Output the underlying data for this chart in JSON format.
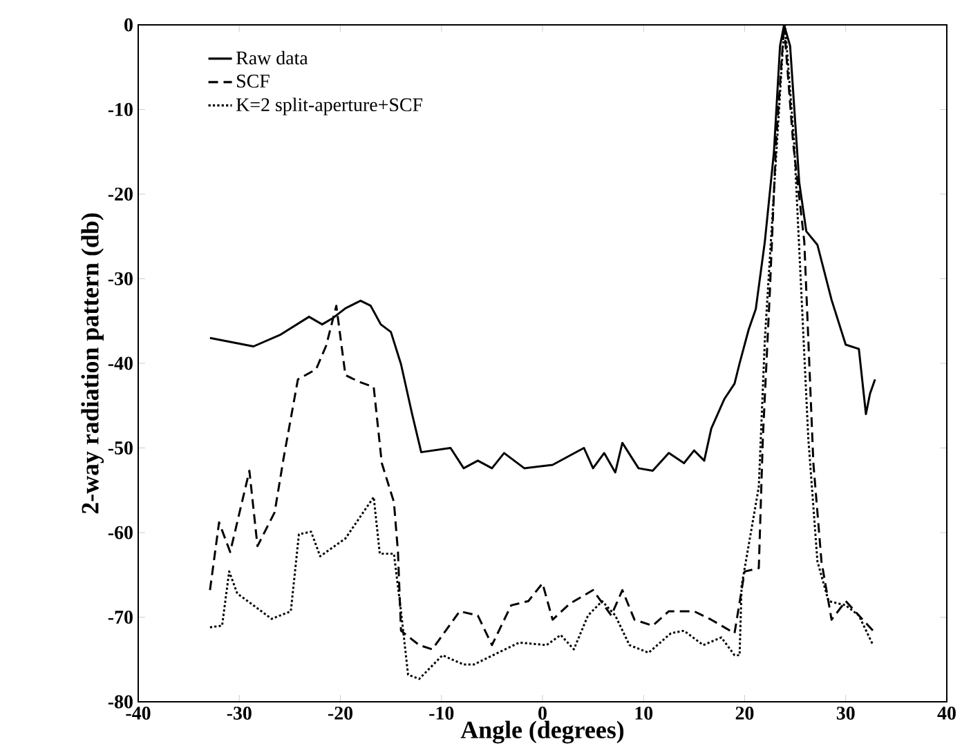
{
  "chart_data": {
    "type": "line",
    "xlabel": "Angle (degrees)",
    "ylabel": "2-way radiation pattern (db)",
    "xlim": [
      -40,
      40
    ],
    "ylim": [
      -80,
      0
    ],
    "xticks": [
      -40,
      -30,
      -20,
      -10,
      0,
      10,
      20,
      30,
      40
    ],
    "yticks": [
      -80,
      -70,
      -60,
      -50,
      -40,
      -30,
      -20,
      -10,
      0
    ],
    "grid": false,
    "legend": "top left",
    "marker": "none",
    "series": [
      {
        "name": "Raw data",
        "color": "#000000",
        "line_style": "solid",
        "x": [
          -32.9,
          -28.6,
          -25.9,
          -23.1,
          -21.8,
          -20.8,
          -19.5,
          -18,
          -17,
          -16,
          -15,
          -14,
          -12.9,
          -12,
          -9.1,
          -7.8,
          -6.4,
          -5,
          -3.8,
          -1.8,
          1,
          4.1,
          5,
          6.1,
          7.2,
          7.9,
          9.5,
          10.9,
          12.5,
          14,
          15,
          16,
          16.7,
          18,
          19,
          19.5,
          20.4,
          21.1,
          22,
          22.9,
          23.5,
          23.9,
          24.5,
          25.4,
          26.1,
          27.2,
          28.6,
          30,
          31.3,
          32,
          32.4,
          32.9
        ],
        "values": [
          -37,
          -38,
          -36.6,
          -34.5,
          -35.4,
          -34.7,
          -33.5,
          -32.6,
          -33.2,
          -35.4,
          -36.3,
          -40.1,
          -46,
          -50.5,
          -50,
          -52.4,
          -51.5,
          -52.4,
          -50.6,
          -52.4,
          -52,
          -50,
          -52.4,
          -50.6,
          -52.9,
          -49.4,
          -52.4,
          -52.7,
          -50.6,
          -51.8,
          -50.3,
          -51.5,
          -47.7,
          -44.2,
          -42.4,
          -40,
          -36,
          -33.6,
          -25.6,
          -15,
          -2.5,
          0,
          -2.5,
          -18.6,
          -24.4,
          -26,
          -32.5,
          -37.8,
          -38.3,
          -46,
          -43.6,
          -41.9
        ]
      },
      {
        "name": "SCF",
        "color": "#000000",
        "line_style": "dashed",
        "x": [
          -32.9,
          -32,
          -30.9,
          -29,
          -28.2,
          -26.5,
          -25.6,
          -24.2,
          -22.4,
          -21.4,
          -20.4,
          -19.5,
          -18.1,
          -16.7,
          -15.9,
          -14.7,
          -14.3,
          -14,
          -12.2,
          -10.9,
          -8.2,
          -6.4,
          -5,
          -3.1,
          -1.4,
          0,
          1,
          2.7,
          5,
          6.8,
          7.9,
          9.1,
          10.9,
          12.5,
          15,
          16.7,
          19,
          20,
          21.4,
          21.8,
          22.5,
          23.1,
          23.9,
          24.8,
          25.9,
          26.3,
          26.8,
          27.6,
          28.6,
          30,
          31.3,
          32.7
        ],
        "values": [
          -66.8,
          -58.8,
          -62.3,
          -52.7,
          -61.6,
          -57.6,
          -51.1,
          -41.9,
          -40.7,
          -37.9,
          -33.2,
          -41.4,
          -42.2,
          -42.8,
          -51.8,
          -56.4,
          -62.3,
          -71.6,
          -73.3,
          -73.8,
          -69.3,
          -69.8,
          -73.3,
          -68.6,
          -68.1,
          -66,
          -70.3,
          -68.4,
          -66.8,
          -69.8,
          -66.8,
          -70.3,
          -71,
          -69.3,
          -69.3,
          -70.3,
          -71.9,
          -64.6,
          -64.2,
          -48.9,
          -31.4,
          -14,
          0,
          -14,
          -25.6,
          -37.2,
          -51.8,
          -63.4,
          -70.3,
          -68.1,
          -69.8,
          -71.6
        ]
      },
      {
        "name": "K=2 split-aperture+SCF",
        "color": "#000000",
        "line_style": "dotted",
        "x": [
          -32.9,
          -31.7,
          -31,
          -30.2,
          -28.6,
          -26.8,
          -24.9,
          -24.1,
          -22.9,
          -22,
          -19.5,
          -16.7,
          -16.1,
          -14.7,
          -14,
          -13.3,
          -12.2,
          -9.9,
          -7.8,
          -6.8,
          -3.7,
          -2.3,
          0.4,
          1.8,
          3.1,
          4.5,
          5.9,
          7.2,
          8.6,
          10.5,
          12.7,
          14,
          15.9,
          17.7,
          19,
          19.5,
          19.7,
          21.4,
          22,
          22.9,
          23.8,
          24,
          24.9,
          25.6,
          26.3,
          27.2,
          28.3,
          30,
          31.3,
          32.7
        ],
        "values": [
          -71.2,
          -71,
          -64.6,
          -67.2,
          -68.6,
          -70.2,
          -69.3,
          -60.2,
          -59.9,
          -62.8,
          -60.7,
          -55.8,
          -62.5,
          -62.5,
          -69.3,
          -76.8,
          -77.3,
          -74.5,
          -75.6,
          -75.6,
          -73.8,
          -73,
          -73.3,
          -72.1,
          -73.8,
          -69.8,
          -68.1,
          -69.8,
          -73.3,
          -74.2,
          -71.9,
          -71.6,
          -73.3,
          -72.4,
          -74.5,
          -74.5,
          -66.3,
          -54.6,
          -37.2,
          -19.7,
          -2.3,
          0,
          -14,
          -31.4,
          -48.9,
          -63.4,
          -68.1,
          -68.6,
          -69.8,
          -73.3
        ]
      }
    ]
  }
}
